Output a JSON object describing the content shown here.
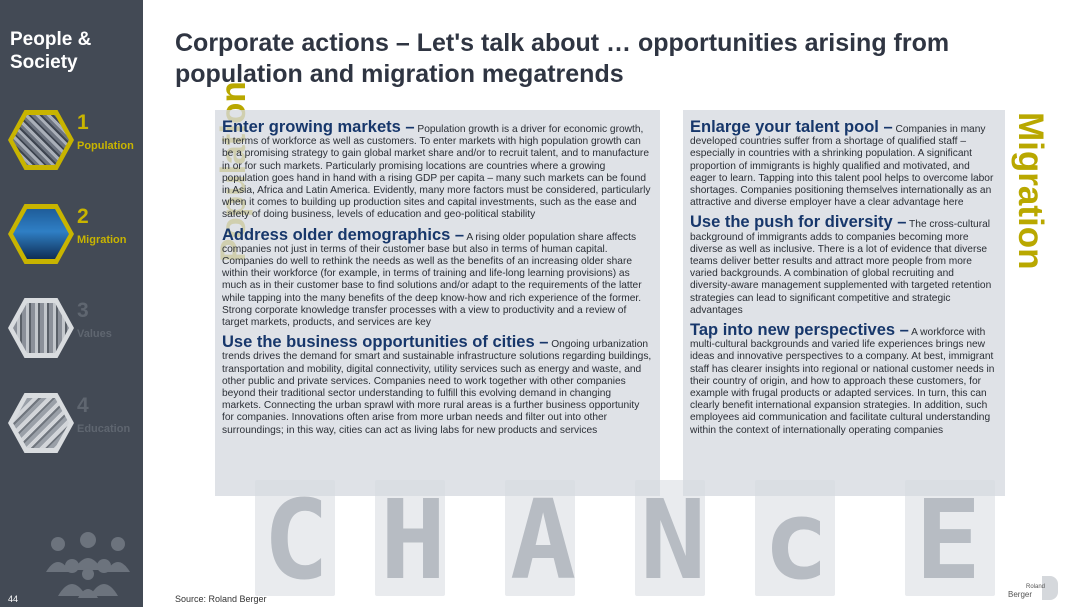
{
  "sidebar": {
    "section_title": "People &\nSociety",
    "items": [
      {
        "number": "1",
        "label": "Population",
        "state": "active",
        "icon": "crowd-photo-icon"
      },
      {
        "number": "2",
        "label": "Migration",
        "state": "active",
        "icon": "airport-photo-icon"
      },
      {
        "number": "3",
        "label": "Values",
        "state": "inactive",
        "icon": "books-photo-icon"
      },
      {
        "number": "4",
        "label": "Education",
        "state": "inactive",
        "icon": "classroom-photo-icon"
      }
    ],
    "page_number": "44"
  },
  "title": "Corporate actions – Let's talk about … opportunities arising from population and migration megatrends",
  "left_label": "Population",
  "right_label": "Migration",
  "left_blocks": [
    {
      "heading": "Enter growing markets –",
      "body": " Population growth is a driver for economic growth, in terms of workforce as well as customers. To enter markets with high population growth can be a promising strategy to gain global market share and/or to recruit talent, and to manufacture in or for such markets. Particularly promising locations are countries where a growing population goes hand in hand with a rising GDP per capita – many such markets can be found in Asia, Africa and Latin America. Evidently, many more factors must be considered, particularly when it comes to building up production sites and capital investments, such as the ease and safety of doing business, levels of education and geo-political stability"
    },
    {
      "heading": "Address older demographics –",
      "body": " A rising older population share affects companies not just in terms of their customer base but also in terms of human capital. Companies do well to rethink the needs as well as the benefits of an increasing older share within their workforce (for example, in terms of training and life-long learning provisions) as much as in their customer base to find solutions and/or adapt to the requirements of the latter while tapping into the many benefits of the deep know-how and rich experience of the former. Strong corporate knowledge transfer processes with a view to productivity and a review of target markets, products, and services are key"
    },
    {
      "heading": "Use the business opportunities of cities –",
      "body": " Ongoing urbanization trends drives the demand for smart and sustainable infrastructure solutions regarding buildings, transportation and mobility, digital connectivity, utility services such as energy and waste, and other public and private services. Companies need to work together with other companies beyond their traditional sector understanding to fulfill this evolving demand in changing markets. Connecting the urban sprawl with more rural areas is a further business opportunity for companies. Innovations often arise from more urban needs and filter out into other surroundings; in this way, cities can act as living labs for new products and services"
    }
  ],
  "right_blocks": [
    {
      "heading": "Enlarge your talent pool –",
      "body": " Companies in many developed countries suffer from a shortage of qualified staff – especially in countries with a shrinking population. A significant proportion of immigrants is highly qualified and motivated, and eager to learn. Tapping into this talent pool helps to overcome labor shortages. Companies positioning themselves internationally as an attractive and diverse employer have a clear advantage here"
    },
    {
      "heading": "Use the push for diversity –",
      "body": " The cross-cultural background of immigrants adds to companies becoming more diverse as well as inclusive. There is a lot of evidence that diverse teams deliver better results and attract more people from more varied backgrounds. A combination of global recruiting and diversity-aware management supplemented with targeted retention strategies can lead to significant competitive and strategic advantages"
    },
    {
      "heading": "Tap into new perspectives –",
      "body": " A workforce with multi-cultural backgrounds and varied life experiences brings new ideas and innovative perspectives to a company. At best, immigrant staff has clearer insights into regional or national customer needs in their country of origin, and how to approach these customers, for example with frugal products or adapted services. In turn, this can clearly benefit international expansion strategies. In addition, such employees aid communication and facilitate cultural understanding within the context of internationally operating companies"
    }
  ],
  "background_letters": [
    "C",
    "H",
    "A",
    "N",
    "c",
    "E"
  ],
  "source": "Source: Roland Berger",
  "logo": {
    "line1": "Roland",
    "line2": "Berger"
  }
}
